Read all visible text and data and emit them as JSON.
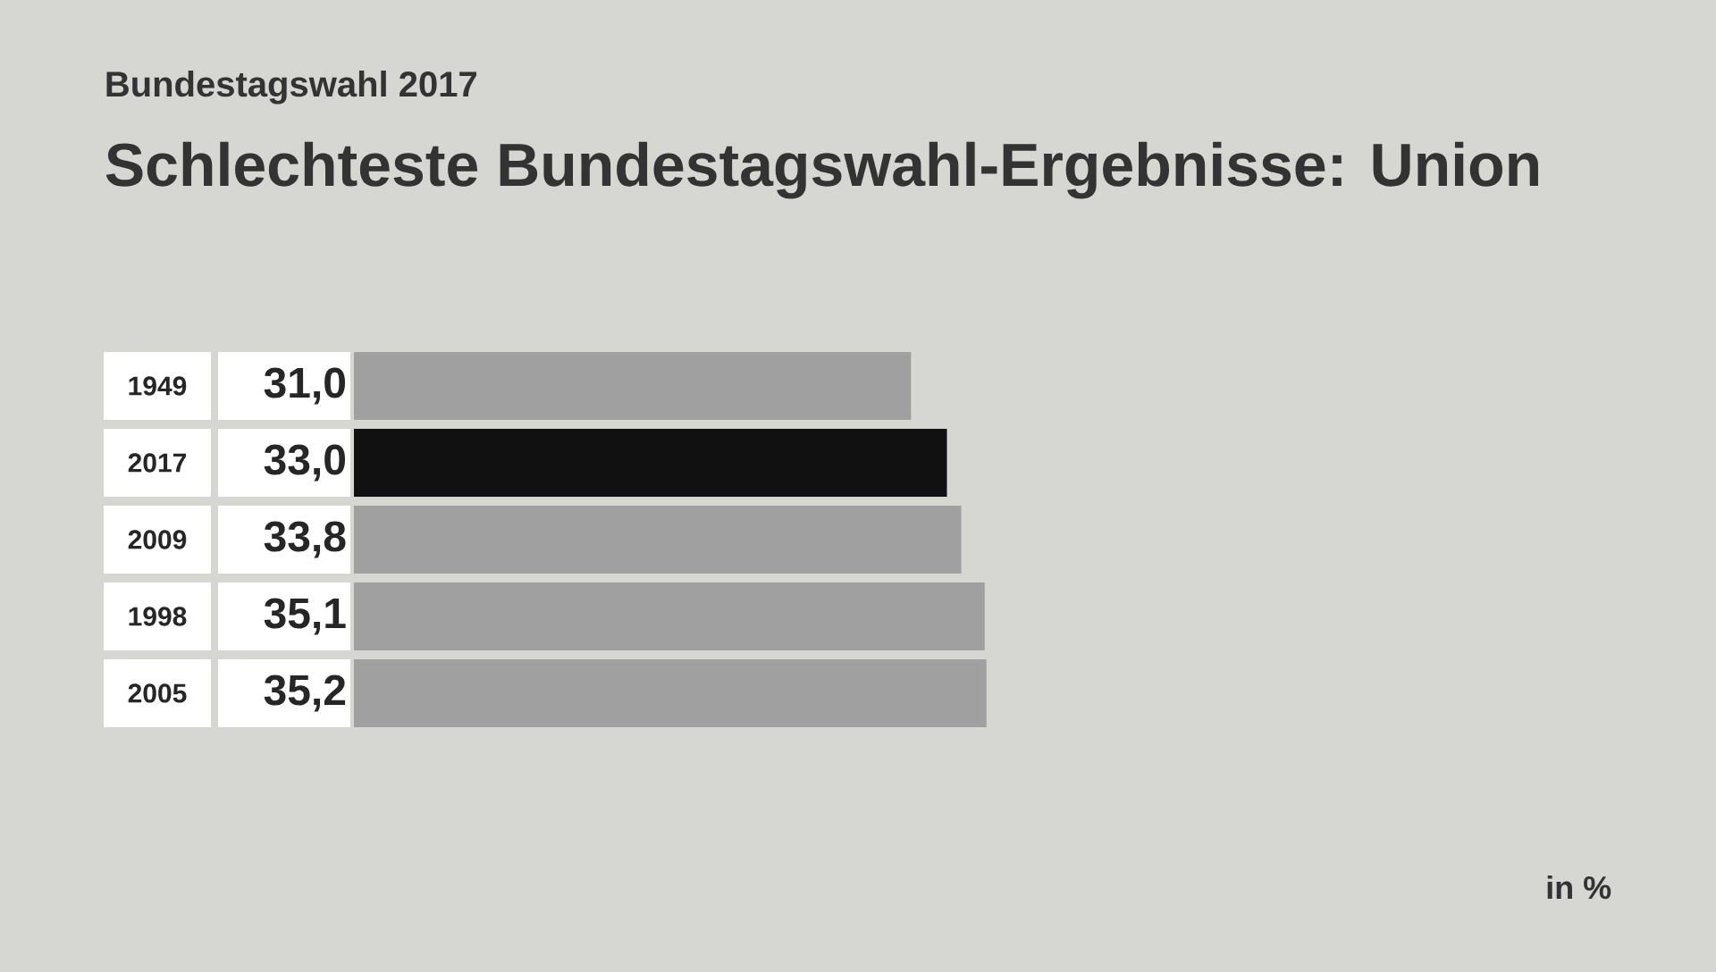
{
  "chart_data": {
    "type": "bar",
    "orientation": "horizontal",
    "subtitle": "Bundestagswahl 2017",
    "title": "Schlechteste Bundestagswahl-Ergebnisse: Union",
    "categories": [
      "1949",
      "2017",
      "2009",
      "1998",
      "2005"
    ],
    "values": [
      31.0,
      33.0,
      33.8,
      35.1,
      35.2
    ],
    "value_labels": [
      "31,0",
      "33,0",
      "33,8",
      "35,1",
      "35,2"
    ],
    "colors": [
      "#a0a0a0",
      "#111111",
      "#a0a0a0",
      "#a0a0a0",
      "#a0a0a0"
    ],
    "annotations": [
      "in %"
    ]
  }
}
